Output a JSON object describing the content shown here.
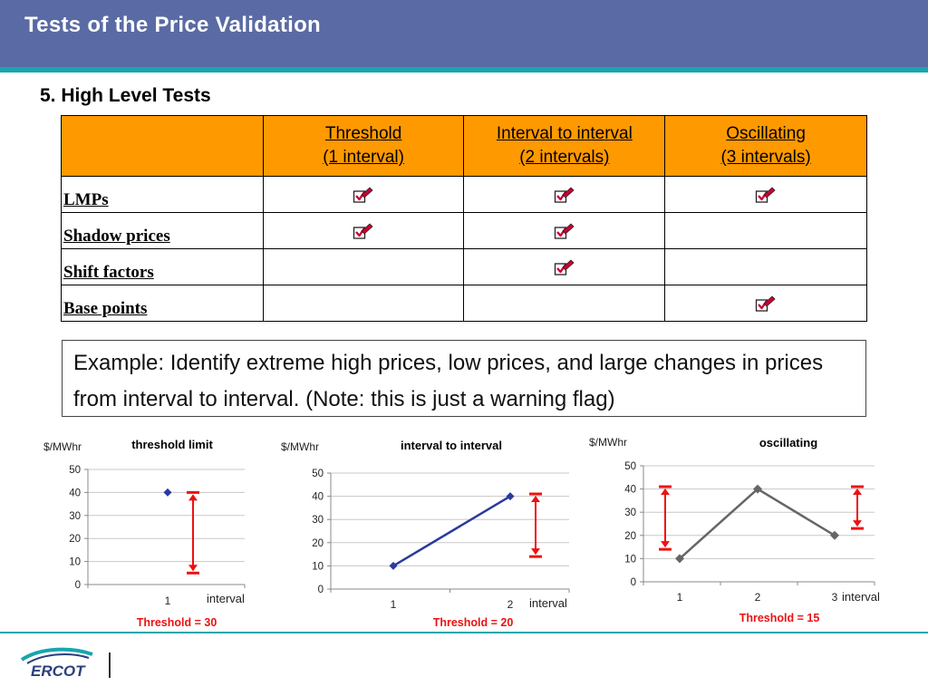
{
  "slide": {
    "title": "Tests of the Price Validation",
    "subtitle": "5. High Level Tests",
    "logo_text": "ERCOT"
  },
  "table": {
    "headers": [
      {
        "line1": "",
        "line2": ""
      },
      {
        "line1": "Threshold",
        "line2": "(1 interval)"
      },
      {
        "line1": "Interval to interval",
        "line2": "(2 intervals)"
      },
      {
        "line1": "Oscillating",
        "line2": "(3 intervals)"
      }
    ],
    "rows": [
      {
        "label": "LMPs",
        "checks": [
          true,
          true,
          true
        ]
      },
      {
        "label": "Shadow prices",
        "checks": [
          true,
          true,
          false
        ]
      },
      {
        "label": "Shift factors",
        "checks": [
          false,
          true,
          false
        ]
      },
      {
        "label": "Base points",
        "checks": [
          false,
          false,
          true
        ]
      }
    ],
    "header_color": "#ff9900",
    "check_color": "#cc0033"
  },
  "example": {
    "text": "Example: Identify extreme high prices, low prices, and large changes in prices from interval to interval. (Note: this is just a warning flag)"
  },
  "chart_data": [
    {
      "type": "line",
      "title": "threshold limit",
      "ylabel": "$/MWhr",
      "xlabel": "interval",
      "categories": [
        "1"
      ],
      "values": [
        40
      ],
      "ylim": [
        0,
        50
      ],
      "yticks": [
        0,
        10,
        20,
        30,
        40,
        50
      ],
      "series_color": "#2b3a9c",
      "annotation": "Threshold = 30",
      "arrows": [
        {
          "x": "right of 1",
          "from": 5,
          "to": 40
        }
      ]
    },
    {
      "type": "line",
      "title": "interval to interval",
      "ylabel": "$/MWhr",
      "xlabel": "interval",
      "categories": [
        "1",
        "2"
      ],
      "values": [
        10,
        40
      ],
      "ylim": [
        0,
        50
      ],
      "yticks": [
        0,
        10,
        20,
        30,
        40,
        50
      ],
      "series_color": "#2b3a9c",
      "annotation": "Threshold = 20",
      "arrows": [
        {
          "x": "right of 2",
          "from": 14,
          "to": 41
        }
      ]
    },
    {
      "type": "line",
      "title": "oscillating",
      "ylabel": "$/MWhr",
      "xlabel": "interval",
      "categories": [
        "1",
        "2",
        "3"
      ],
      "values": [
        10,
        40,
        20
      ],
      "ylim": [
        0,
        50
      ],
      "yticks": [
        0,
        10,
        20,
        30,
        40,
        50
      ],
      "series_color": "#666666",
      "annotation": "Threshold = 15",
      "arrows": [
        {
          "x": "left of 1",
          "from": 14,
          "to": 41
        },
        {
          "x": "right of 3",
          "from": 23,
          "to": 41
        }
      ]
    }
  ],
  "colors": {
    "header_bg": "#5a6aa4",
    "accent": "#16a6ae",
    "arrow": "#ee1111",
    "annotation": "#ee1111"
  }
}
